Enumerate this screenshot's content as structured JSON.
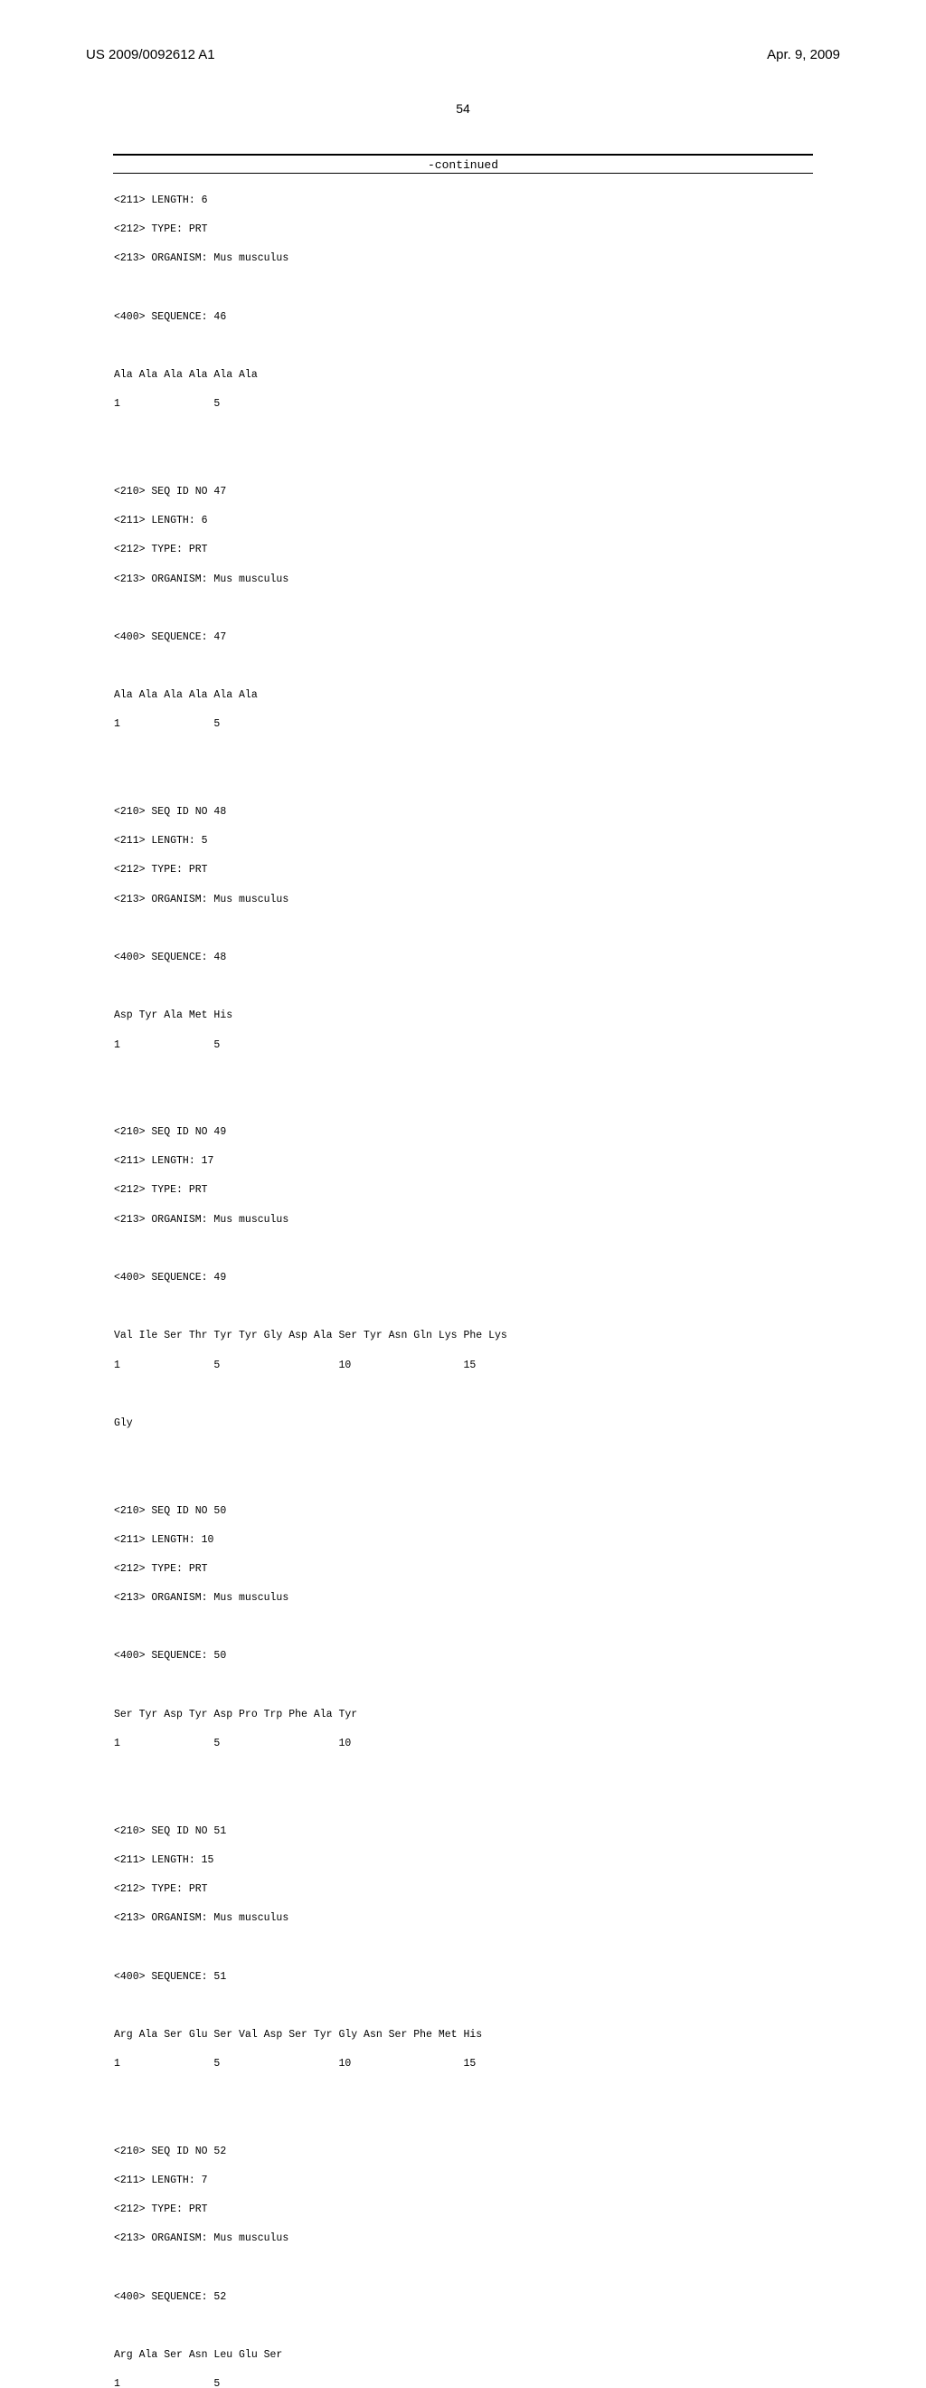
{
  "header": {
    "publication_number": "US 2009/0092612 A1",
    "publication_date": "Apr. 9, 2009"
  },
  "page_number": "54",
  "continued_label": "-continued",
  "sequences": {
    "block1": {
      "line1": "<211> LENGTH: 6",
      "line2": "<212> TYPE: PRT",
      "line3": "<213> ORGANISM: Mus musculus",
      "line4": "<400> SEQUENCE: 46",
      "line5": "Ala Ala Ala Ala Ala Ala",
      "line6": "1               5"
    },
    "block2": {
      "line1": "<210> SEQ ID NO 47",
      "line2": "<211> LENGTH: 6",
      "line3": "<212> TYPE: PRT",
      "line4": "<213> ORGANISM: Mus musculus",
      "line5": "<400> SEQUENCE: 47",
      "line6": "Ala Ala Ala Ala Ala Ala",
      "line7": "1               5"
    },
    "block3": {
      "line1": "<210> SEQ ID NO 48",
      "line2": "<211> LENGTH: 5",
      "line3": "<212> TYPE: PRT",
      "line4": "<213> ORGANISM: Mus musculus",
      "line5": "<400> SEQUENCE: 48",
      "line6": "Asp Tyr Ala Met His",
      "line7": "1               5"
    },
    "block4": {
      "line1": "<210> SEQ ID NO 49",
      "line2": "<211> LENGTH: 17",
      "line3": "<212> TYPE: PRT",
      "line4": "<213> ORGANISM: Mus musculus",
      "line5": "<400> SEQUENCE: 49",
      "line6": "Val Ile Ser Thr Tyr Tyr Gly Asp Ala Ser Tyr Asn Gln Lys Phe Lys",
      "line7": "1               5                   10                  15",
      "line8": "Gly"
    },
    "block5": {
      "line1": "<210> SEQ ID NO 50",
      "line2": "<211> LENGTH: 10",
      "line3": "<212> TYPE: PRT",
      "line4": "<213> ORGANISM: Mus musculus",
      "line5": "<400> SEQUENCE: 50",
      "line6": "Ser Tyr Asp Tyr Asp Pro Trp Phe Ala Tyr",
      "line7": "1               5                   10"
    },
    "block6": {
      "line1": "<210> SEQ ID NO 51",
      "line2": "<211> LENGTH: 15",
      "line3": "<212> TYPE: PRT",
      "line4": "<213> ORGANISM: Mus musculus",
      "line5": "<400> SEQUENCE: 51",
      "line6": "Arg Ala Ser Glu Ser Val Asp Ser Tyr Gly Asn Ser Phe Met His",
      "line7": "1               5                   10                  15"
    },
    "block7": {
      "line1": "<210> SEQ ID NO 52",
      "line2": "<211> LENGTH: 7",
      "line3": "<212> TYPE: PRT",
      "line4": "<213> ORGANISM: Mus musculus",
      "line5": "<400> SEQUENCE: 52",
      "line6": "Arg Ala Ser Asn Leu Glu Ser",
      "line7": "1               5"
    }
  }
}
